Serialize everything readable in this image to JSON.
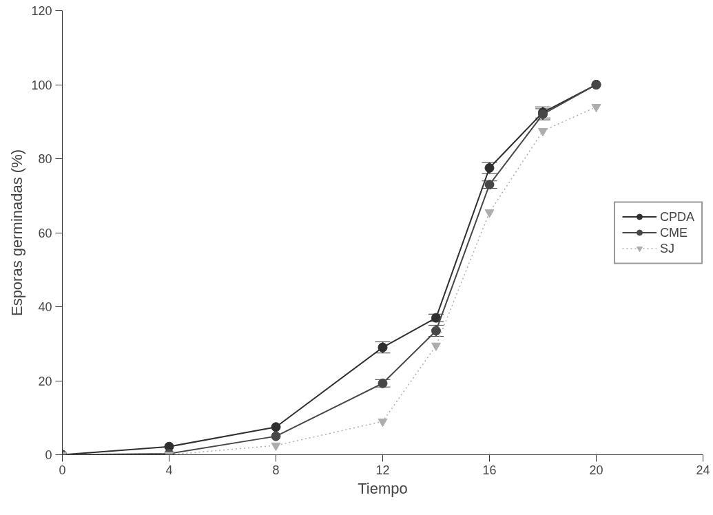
{
  "chart_data": {
    "type": "line",
    "xlabel": "Tiempo",
    "ylabel": "Esporas germinadas (%)",
    "x": [
      0,
      4,
      8,
      12,
      14,
      16,
      18,
      20
    ],
    "xlim": [
      0,
      24
    ],
    "xticks": [
      0,
      4,
      8,
      12,
      16,
      20,
      24
    ],
    "ylim": [
      0,
      120
    ],
    "yticks": [
      0,
      20,
      40,
      60,
      80,
      100,
      120
    ],
    "grid": false,
    "legend": "right",
    "series": [
      {
        "name": "CPDA",
        "color": "#2f2f2f",
        "marker": "circle",
        "line_style": "solid",
        "values": [
          0,
          2.2,
          7.5,
          29,
          37,
          77.5,
          92.5,
          100
        ],
        "errors": [
          null,
          null,
          null,
          1.5,
          1,
          1.5,
          1.5,
          null
        ]
      },
      {
        "name": "CME",
        "color": "#474747",
        "marker": "circle",
        "line_style": "solid",
        "values": [
          0,
          0.3,
          5,
          19.3,
          33.5,
          73,
          92,
          100
        ],
        "errors": [
          null,
          null,
          null,
          1,
          1.5,
          1,
          1.5,
          null
        ]
      },
      {
        "name": "SJ",
        "color": "#adadad",
        "marker": "triangle",
        "line_style": "dotted",
        "values": [
          0,
          0,
          2.5,
          9,
          29.5,
          65.5,
          87.5,
          94
        ]
      }
    ]
  }
}
